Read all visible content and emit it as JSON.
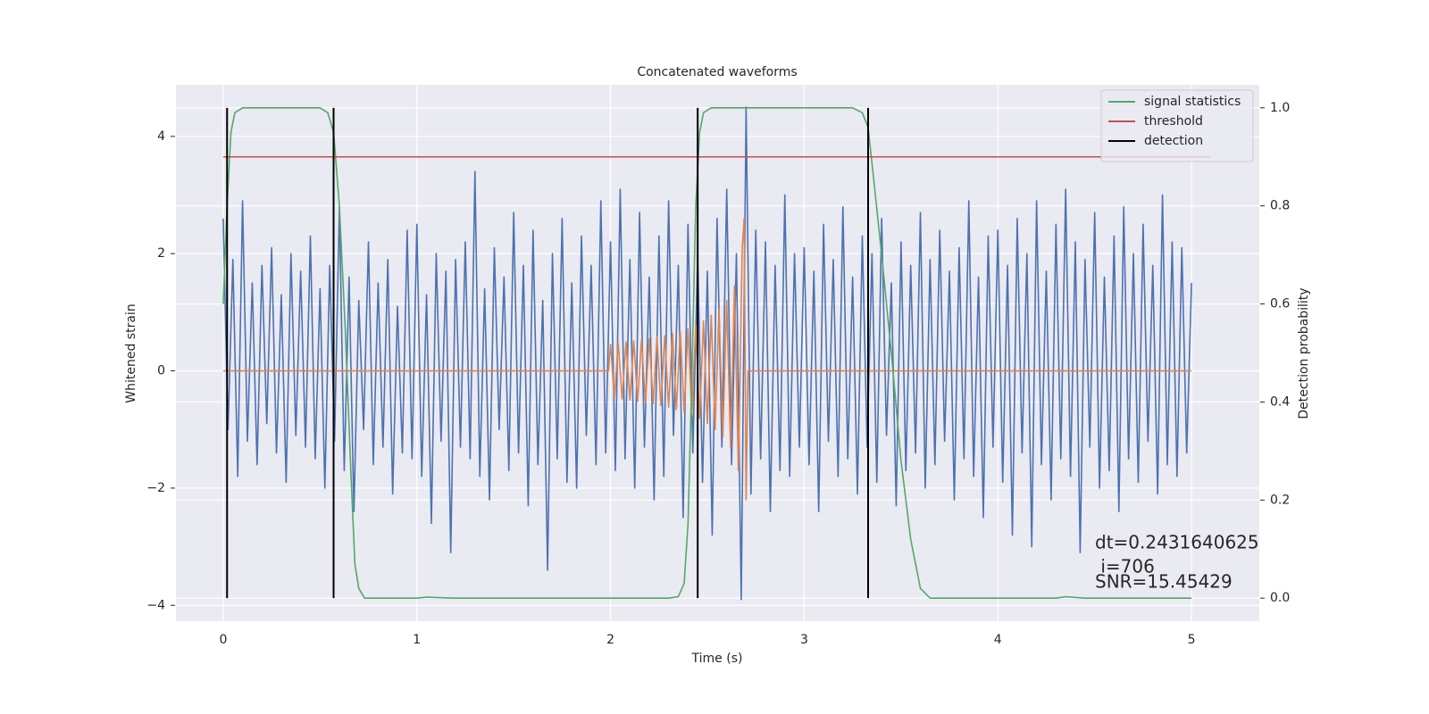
{
  "chart_data": {
    "type": "line",
    "title": "Concatenated waveforms",
    "xlabel": "Time (s)",
    "ylabel": "Whitened strain",
    "y2label": "Detection probability",
    "xlim": [
      -0.244,
      5.35
    ],
    "ylim": [
      -4.27,
      4.88
    ],
    "y2lim": [
      -0.047,
      1.047
    ],
    "xticks": [
      0,
      1,
      2,
      3,
      4,
      5
    ],
    "yticks": [
      {
        "value": -4,
        "label": "−4"
      },
      {
        "value": -2,
        "label": "−2"
      },
      0,
      2,
      4
    ],
    "y2ticks": [
      {
        "value": 0,
        "label": "0.0"
      },
      0.2,
      0.4,
      0.6,
      0.8,
      {
        "value": 1,
        "label": "1.0"
      }
    ],
    "grid": true,
    "legend": "upper right",
    "series": [
      {
        "color": "#4c72b0",
        "axis": "y",
        "x": [
          0,
          0.025,
          0.05,
          0.075,
          0.1,
          0.125,
          0.15,
          0.175,
          0.2,
          0.225,
          0.25,
          0.275,
          0.3,
          0.325,
          0.35,
          0.375,
          0.4,
          0.425,
          0.45,
          0.475,
          0.5,
          0.525,
          0.55,
          0.575,
          0.6,
          0.625,
          0.65,
          0.675,
          0.7,
          0.725,
          0.75,
          0.775,
          0.8,
          0.825,
          0.85,
          0.875,
          0.9,
          0.925,
          0.95,
          0.975,
          1,
          1.025,
          1.05,
          1.075,
          1.1,
          1.125,
          1.15,
          1.175,
          1.2,
          1.225,
          1.25,
          1.275,
          1.3,
          1.325,
          1.35,
          1.375,
          1.4,
          1.425,
          1.45,
          1.475,
          1.5,
          1.525,
          1.55,
          1.575,
          1.6,
          1.625,
          1.65,
          1.675,
          1.7,
          1.725,
          1.75,
          1.775,
          1.8,
          1.825,
          1.85,
          1.875,
          1.9,
          1.925,
          1.95,
          1.975,
          2,
          2.025,
          2.05,
          2.075,
          2.1,
          2.125,
          2.15,
          2.175,
          2.2,
          2.225,
          2.25,
          2.275,
          2.3,
          2.325,
          2.35,
          2.375,
          2.4,
          2.425,
          2.45,
          2.475,
          2.5,
          2.525,
          2.55,
          2.575,
          2.6,
          2.625,
          2.65,
          2.675,
          2.7,
          2.725,
          2.75,
          2.775,
          2.8,
          2.825,
          2.85,
          2.875,
          2.9,
          2.925,
          2.95,
          2.975,
          3,
          3.025,
          3.05,
          3.075,
          3.1,
          3.125,
          3.15,
          3.175,
          3.2,
          3.225,
          3.25,
          3.275,
          3.3,
          3.325,
          3.35,
          3.375,
          3.4,
          3.425,
          3.45,
          3.475,
          3.5,
          3.525,
          3.55,
          3.575,
          3.6,
          3.625,
          3.65,
          3.675,
          3.7,
          3.725,
          3.75,
          3.775,
          3.8,
          3.825,
          3.85,
          3.875,
          3.9,
          3.925,
          3.95,
          3.975,
          4,
          4.025,
          4.05,
          4.075,
          4.1,
          4.125,
          4.15,
          4.175,
          4.2,
          4.225,
          4.25,
          4.275,
          4.3,
          4.325,
          4.35,
          4.375,
          4.4,
          4.425,
          4.45,
          4.475,
          4.5,
          4.525,
          4.55,
          4.575,
          4.6,
          4.625,
          4.65,
          4.675,
          4.7,
          4.725,
          4.75,
          4.775,
          4.8,
          4.825,
          4.85,
          4.875,
          4.9,
          4.925,
          4.95,
          4.975,
          5
        ],
        "values": [
          2.6,
          -1.0,
          1.9,
          -1.8,
          2.9,
          -1.2,
          1.5,
          -1.6,
          1.8,
          -0.9,
          2.1,
          -1.4,
          1.3,
          -1.9,
          2.0,
          -1.1,
          1.7,
          -1.3,
          2.3,
          -1.5,
          1.4,
          -2.0,
          1.8,
          -1.2,
          2.8,
          -1.7,
          1.6,
          -2.4,
          1.2,
          -1.0,
          2.2,
          -1.6,
          1.5,
          -1.3,
          1.9,
          -2.1,
          1.1,
          -1.4,
          2.4,
          -1.5,
          2.5,
          -1.8,
          1.3,
          -2.6,
          2.0,
          -1.2,
          1.7,
          -3.1,
          1.9,
          -1.3,
          2.2,
          -1.5,
          3.4,
          -1.8,
          1.4,
          -2.2,
          2.1,
          -1.0,
          1.6,
          -1.7,
          2.7,
          -1.4,
          1.8,
          -2.3,
          2.4,
          -1.6,
          1.2,
          -3.4,
          2.0,
          -1.5,
          2.6,
          -1.9,
          1.5,
          -2.0,
          2.3,
          -1.1,
          1.8,
          -1.6,
          2.9,
          -1.4,
          2.2,
          -1.7,
          3.1,
          -1.5,
          1.9,
          -2.0,
          2.7,
          -1.3,
          1.6,
          -2.2,
          2.3,
          -1.8,
          2.9,
          -1.1,
          1.8,
          -2.5,
          2.5,
          -1.4,
          2.0,
          -1.9,
          1.7,
          -2.8,
          2.6,
          -1.3,
          3.1,
          -1.6,
          2.0,
          -3.9,
          4.5,
          -2.1,
          2.4,
          -1.5,
          2.2,
          -2.4,
          1.8,
          -1.7,
          3.0,
          -1.8,
          2.0,
          -1.3,
          2.1,
          -1.6,
          1.7,
          -2.4,
          2.5,
          -1.2,
          1.9,
          -1.8,
          2.8,
          -1.5,
          1.6,
          -2.1,
          2.3,
          -1.3,
          2.0,
          -1.9,
          2.6,
          -1.1,
          1.5,
          -2.3,
          2.2,
          -1.7,
          1.8,
          -1.4,
          2.7,
          -2.0,
          1.9,
          -1.6,
          2.4,
          -1.2,
          1.7,
          -2.2,
          2.1,
          -1.5,
          2.9,
          -1.8,
          1.6,
          -2.5,
          2.3,
          -1.3,
          2.4,
          -1.9,
          1.8,
          -2.8,
          2.6,
          -1.4,
          2.0,
          -3.0,
          2.9,
          -1.6,
          1.7,
          -2.2,
          2.5,
          -1.5,
          3.1,
          -1.8,
          2.2,
          -3.1,
          1.9,
          -1.3,
          2.7,
          -2.0,
          1.6,
          -1.7,
          2.3,
          -2.4,
          2.8,
          -1.5,
          2.0,
          -1.9,
          2.5,
          -1.2,
          1.8,
          -2.1,
          3.0,
          -1.6,
          2.2,
          -1.8,
          2.1,
          -1.4,
          1.5
        ]
      },
      {
        "color": "#dd8452",
        "axis": "y",
        "x": [
          0,
          1.99,
          2.0,
          2.02,
          2.04,
          2.06,
          2.08,
          2.1,
          2.12,
          2.14,
          2.16,
          2.18,
          2.2,
          2.22,
          2.24,
          2.26,
          2.28,
          2.3,
          2.32,
          2.34,
          2.36,
          2.38,
          2.4,
          2.42,
          2.44,
          2.46,
          2.48,
          2.5,
          2.52,
          2.54,
          2.56,
          2.58,
          2.6,
          2.62,
          2.64,
          2.66,
          2.68,
          2.69,
          2.7,
          2.71,
          5
        ],
        "values": [
          0,
          0,
          0.45,
          -0.46,
          0.47,
          -0.48,
          0.49,
          -0.5,
          0.51,
          -0.52,
          0.53,
          -0.54,
          0.55,
          -0.56,
          0.58,
          -0.59,
          0.6,
          -0.62,
          0.64,
          -0.66,
          0.68,
          -0.7,
          0.72,
          -0.75,
          0.78,
          -0.81,
          0.85,
          -0.9,
          0.95,
          -1.0,
          1.05,
          -1.12,
          1.2,
          -1.32,
          1.45,
          -1.7,
          2.1,
          2.6,
          -2.2,
          0,
          0
        ]
      },
      {
        "name": "signal statistics",
        "color": "#55a868",
        "axis": "y2",
        "x": [
          0,
          0.02,
          0.04,
          0.06,
          0.1,
          0.5,
          0.54,
          0.57,
          0.6,
          0.63,
          0.66,
          0.68,
          0.7,
          0.73,
          1.0,
          1.05,
          1.2,
          2.3,
          2.35,
          2.38,
          2.4,
          2.42,
          2.44,
          2.46,
          2.48,
          2.52,
          3.25,
          3.3,
          3.33,
          3.36,
          3.4,
          3.45,
          3.5,
          3.55,
          3.6,
          3.65,
          4.3,
          4.35,
          4.45,
          5.0
        ],
        "values": [
          0.6,
          0.8,
          0.95,
          0.99,
          1.0,
          1.0,
          0.99,
          0.95,
          0.8,
          0.55,
          0.25,
          0.07,
          0.02,
          0.0,
          0.0,
          0.002,
          0.0,
          0.0,
          0.003,
          0.03,
          0.15,
          0.45,
          0.8,
          0.95,
          0.99,
          1.0,
          1.0,
          0.99,
          0.96,
          0.85,
          0.7,
          0.5,
          0.28,
          0.12,
          0.02,
          0.0,
          0.0,
          0.003,
          0.0,
          0.0
        ]
      },
      {
        "name": "threshold",
        "color": "#c44e52",
        "axis": "y2",
        "x": [
          0,
          5.1
        ],
        "values": [
          0.9,
          0.9
        ]
      }
    ],
    "detection": {
      "name": "detection",
      "color": "#000000",
      "x": [
        0.02,
        0.57,
        2.45,
        3.33
      ]
    },
    "annotations": [
      "dt=0.2431640625",
      " i=706",
      "SNR=15.45429"
    ]
  }
}
